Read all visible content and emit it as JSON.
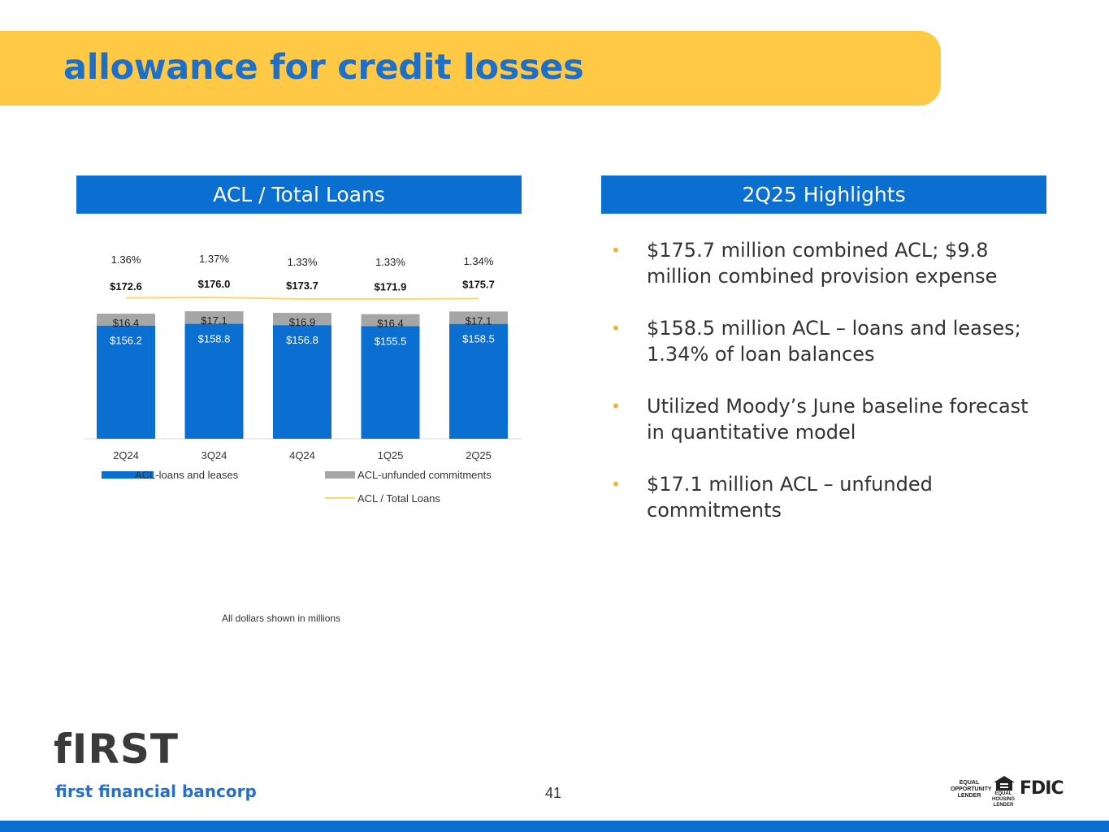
{
  "page": {
    "title": "allowance for credit losses",
    "left_header": "ACL / Total Loans",
    "right_header": "2Q25 Highlights",
    "footnote": "All dollars shown in millions",
    "page_number": "41"
  },
  "highlights": [
    "$175.7 million combined ACL; $9.8 million combined provision expense",
    "$158.5 million ACL – loans and leases; 1.34% of loan balances",
    "Utilized Moody’s June baseline forecast in quantitative model",
    "$17.1 million ACL – unfunded commitments"
  ],
  "bullet_glyph": "•",
  "footer": {
    "logo": "fIRST",
    "company": "first financial bancorp",
    "equal_opportunity": "EQUAL OPPORTUNITY LENDER",
    "equal_housing": "EQUAL HOUSING LENDER",
    "fdic": "FDIC"
  },
  "colors": {
    "accent_yellow": "#ffc845",
    "brand_blue": "#0a6fd1",
    "bar_blue": "#0a6fd1",
    "bar_gray": "#a6a6a6",
    "line_yellow": "#ffd966"
  },
  "chart_data": {
    "type": "bar",
    "stacked": true,
    "categories": [
      "2Q24",
      "3Q24",
      "4Q24",
      "1Q25",
      "2Q25"
    ],
    "series": [
      {
        "name": "ACL-loans and leases",
        "values": [
          156.2,
          158.8,
          156.8,
          155.5,
          158.5
        ],
        "labels": [
          "$156.2",
          "$158.8",
          "$156.8",
          "$155.5",
          "$158.5"
        ],
        "color": "#0a6fd1"
      },
      {
        "name": "ACL-unfunded commitments",
        "values": [
          16.4,
          17.1,
          16.9,
          16.4,
          17.1
        ],
        "labels": [
          "$16.4",
          "$17.1",
          "$16.9",
          "$16.4",
          "$17.1"
        ],
        "color": "#a6a6a6"
      }
    ],
    "totals": [
      172.6,
      176.0,
      173.7,
      171.9,
      175.7
    ],
    "total_labels": [
      "$172.6",
      "$176.0",
      "$173.7",
      "$171.9",
      "$175.7"
    ],
    "ratio_series": {
      "name": "ACL / Total Loans",
      "values": [
        1.36,
        1.37,
        1.33,
        1.33,
        1.34
      ],
      "labels": [
        "1.36%",
        "1.37%",
        "1.33%",
        "1.33%",
        "1.34%"
      ],
      "color": "#ffd966"
    },
    "legend": [
      "ACL-loans and leases",
      "ACL-unfunded commitments",
      "ACL / Total Loans"
    ],
    "legend_position": "bottom",
    "ylim": [
      0,
      200
    ],
    "grid": false
  }
}
